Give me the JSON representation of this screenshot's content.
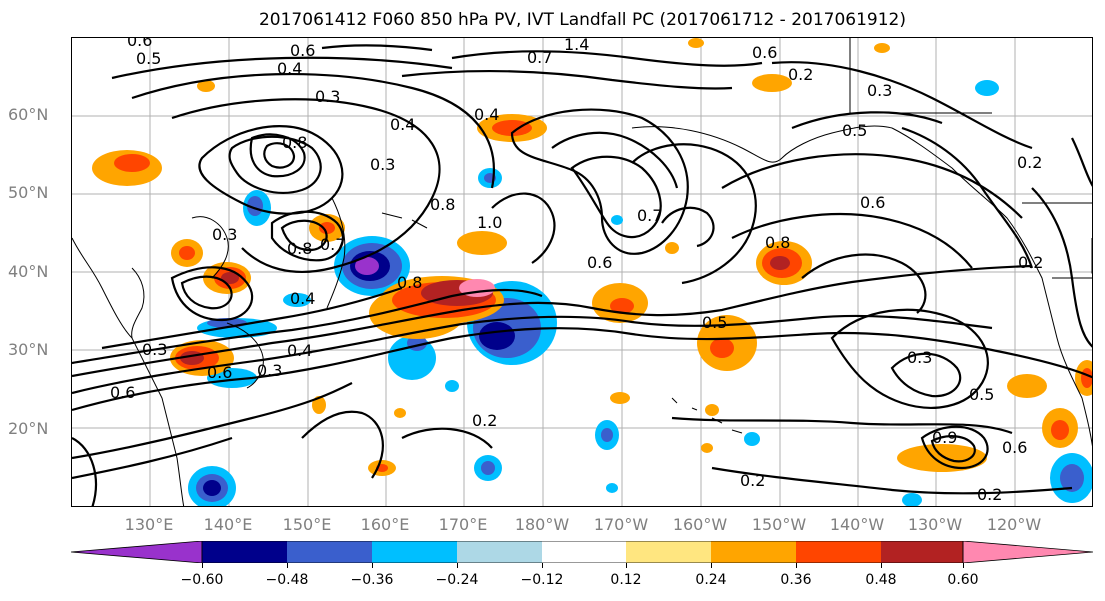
{
  "title": "2017061412 F060 850 hPa PV, IVT Landfall PC (2017061712 - 2017061912)",
  "lat_labels": [
    "60°N",
    "50°N",
    "40°N",
    "30°N",
    "20°N"
  ],
  "lon_labels": [
    "130°E",
    "140°E",
    "150°E",
    "160°E",
    "170°E",
    "180°W",
    "170°W",
    "160°W",
    "150°W",
    "140°W",
    "130°W",
    "120°W"
  ],
  "contour_labels": [
    "0.6",
    "0.5",
    "1.4",
    "0.6",
    "0.7",
    "0.4",
    "0.3",
    "0.8",
    "0.6",
    "0.2",
    "0.3",
    "0.5",
    "0.4",
    "0.4",
    "0.3",
    "0.8",
    "0.3",
    "0.4",
    "0.8",
    "0.7",
    "0.6",
    "0.7",
    "1.0",
    "0.8",
    "0.2",
    "0.6",
    "0.8",
    "0.5",
    "0.3",
    "0.4",
    "0.3",
    "0.6",
    "0.6",
    "0.2",
    "0.3",
    "0.5",
    "0.2",
    "0.2",
    "0.2",
    "0.9",
    "0.6"
  ],
  "colorbar": {
    "colors": [
      "#9932cc",
      "#00008b",
      "#3a5fcd",
      "#00bfff",
      "#add8e6",
      "#ffffff",
      "#ffe680",
      "#ffa500",
      "#ff4500",
      "#b22222",
      "#ff88b0"
    ],
    "under_color": "#9932cc",
    "over_color": "#ff88b0",
    "tick_labels": [
      "−0.60",
      "−0.48",
      "−0.36",
      "−0.24",
      "−0.12",
      "0.12",
      "0.24",
      "0.36",
      "0.48",
      "0.60"
    ]
  },
  "shading_colors": {
    "deep_purple": "#9932cc",
    "navy": "#00008b",
    "royal_blue": "#3a5fcd",
    "sky_blue": "#00bfff",
    "light_blue": "#add8e6",
    "yellow": "#ffe680",
    "orange": "#ffa500",
    "red_orange": "#ff4500",
    "firebrick": "#b22222",
    "pink": "#ff88b0"
  }
}
